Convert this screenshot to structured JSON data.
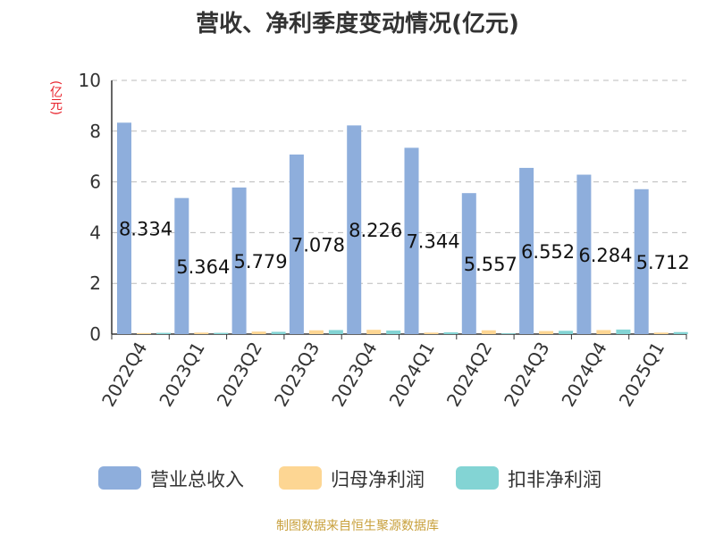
{
  "chart_data": {
    "type": "bar",
    "title": "营收、净利季度变动情况(亿元)",
    "ylabel": "(亿元)",
    "xlabel": "",
    "ylim": [
      0,
      10
    ],
    "yticks": [
      0,
      2,
      4,
      6,
      8,
      10
    ],
    "grid": true,
    "legend_position": "bottom",
    "categories": [
      "2022Q4",
      "2023Q1",
      "2023Q2",
      "2023Q3",
      "2023Q4",
      "2024Q1",
      "2024Q2",
      "2024Q3",
      "2024Q4",
      "2025Q1"
    ],
    "series": [
      {
        "name": "营业总收入",
        "color": "#8eaedc",
        "values": [
          8.334,
          5.364,
          5.779,
          7.078,
          8.226,
          7.344,
          5.557,
          6.552,
          6.284,
          5.712
        ]
      },
      {
        "name": "归母净利润",
        "color": "#fdd693",
        "values": [
          0.04,
          0.06,
          0.1,
          0.15,
          0.17,
          0.06,
          0.15,
          0.12,
          0.16,
          0.06
        ]
      },
      {
        "name": "扣非净利润",
        "color": "#83d4d4",
        "values": [
          0.05,
          0.05,
          0.09,
          0.16,
          0.14,
          0.07,
          0.03,
          0.13,
          0.18,
          0.08
        ]
      }
    ],
    "data_labels": [
      "8.334",
      "5.364",
      "5.779",
      "7.078",
      "8.226",
      "7.344",
      "5.557",
      "6.552",
      "6.284",
      "5.712"
    ]
  },
  "source": "制图数据来自恒生聚源数据库"
}
